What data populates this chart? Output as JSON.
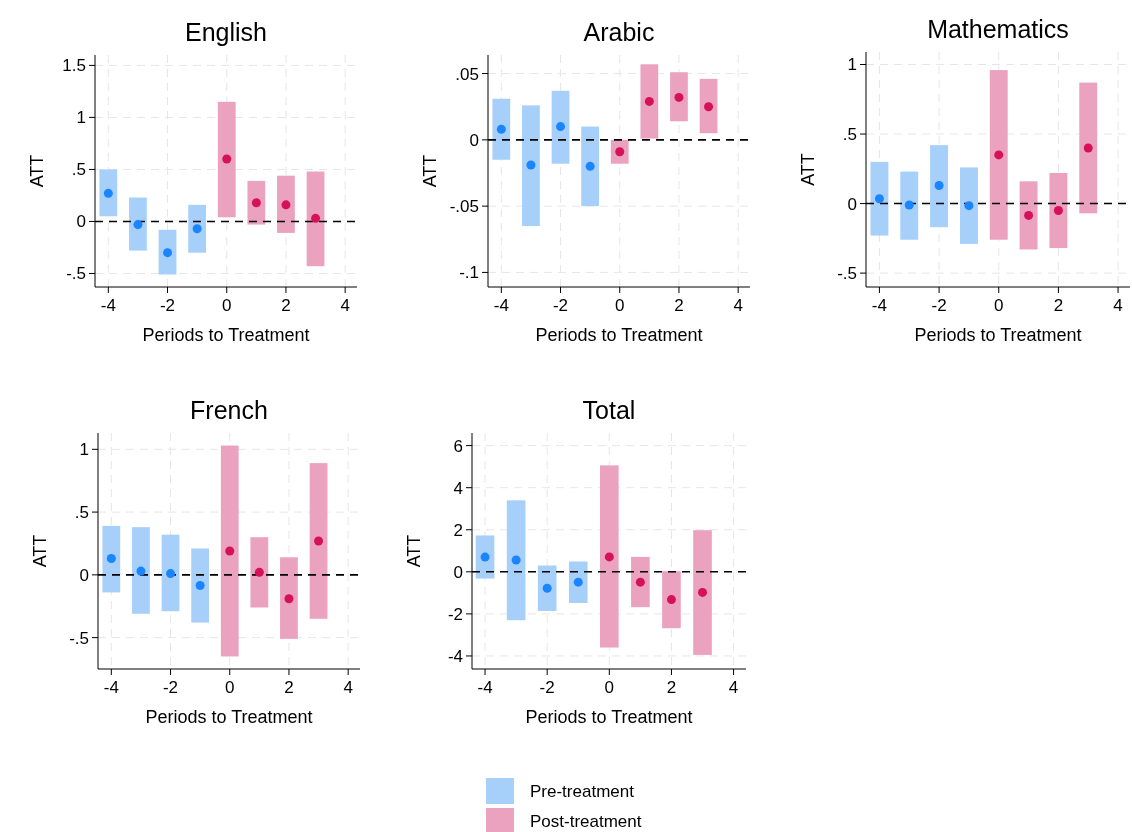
{
  "chart_data": [
    {
      "type": "bar",
      "title": "English",
      "xlabel": "Periods to Treatment",
      "ylabel": "ATT",
      "xlim": [
        -4.45,
        4.4
      ],
      "xticks": [
        -4,
        -2,
        0,
        2,
        4
      ],
      "ylim": [
        -0.63,
        1.6
      ],
      "yticks": [
        {
          "value": -0.5,
          "label": "-.5"
        },
        0,
        {
          "value": 0.5,
          "label": ".5"
        },
        1,
        1.5
      ],
      "grid": true,
      "marker": "circle",
      "legend": false,
      "ref_lines": [
        {
          "axis": "y",
          "value": 0,
          "color": "#000000",
          "line_style": "dashed"
        }
      ],
      "series": [
        {
          "color": "#a6cff9",
          "x": [
            -4,
            -3,
            -2,
            -1
          ],
          "base": [
            0.05,
            -0.28,
            -0.51,
            -0.3
          ],
          "values": [
            0.45,
            0.51,
            0.43,
            0.46
          ]
        },
        {
          "color": "#eba2be",
          "x": [
            0,
            1,
            2,
            3
          ],
          "base": [
            0.04,
            -0.03,
            -0.11,
            -0.43
          ],
          "values": [
            1.11,
            0.42,
            0.55,
            0.91
          ]
        },
        {
          "type": "scatter",
          "color": "#1a85ff",
          "x": [
            -4,
            -3,
            -2,
            -1
          ],
          "values": [
            0.27,
            -0.03,
            -0.3,
            -0.07
          ]
        },
        {
          "type": "scatter",
          "color": "#d41159",
          "x": [
            0,
            1,
            2,
            3
          ],
          "values": [
            0.6,
            0.18,
            0.16,
            0.03
          ]
        }
      ]
    },
    {
      "type": "bar",
      "title": "Arabic",
      "xlabel": "Periods to Treatment",
      "ylabel": "ATT",
      "xlim": [
        -4.45,
        4.4
      ],
      "xticks": [
        -4,
        -2,
        0,
        2,
        4
      ],
      "ylim": [
        -0.111,
        0.064
      ],
      "yticks": [
        {
          "value": -0.1,
          "label": "-.1"
        },
        {
          "value": -0.05,
          "label": "-.05"
        },
        0,
        {
          "value": 0.05,
          "label": ".05"
        }
      ],
      "grid": true,
      "marker": "circle",
      "legend": false,
      "ref_lines": [
        {
          "axis": "y",
          "value": 0,
          "color": "#000000",
          "line_style": "dashed"
        }
      ],
      "series": [
        {
          "color": "#a6cff9",
          "x": [
            -4,
            -3,
            -2,
            -1
          ],
          "base": [
            -0.015,
            -0.065,
            -0.018,
            -0.05
          ],
          "values": [
            0.046,
            0.091,
            0.055,
            0.06
          ]
        },
        {
          "color": "#eba2be",
          "x": [
            0,
            1,
            2,
            3
          ],
          "base": [
            -0.018,
            0.001,
            0.014,
            0.005
          ],
          "values": [
            0.018,
            0.056,
            0.037,
            0.041
          ]
        },
        {
          "type": "scatter",
          "color": "#1a85ff",
          "x": [
            -4,
            -3,
            -2,
            -1
          ],
          "values": [
            0.008,
            -0.019,
            0.01,
            -0.02
          ]
        },
        {
          "type": "scatter",
          "color": "#d41159",
          "x": [
            0,
            1,
            2,
            3
          ],
          "values": [
            -0.009,
            0.029,
            0.032,
            0.025
          ]
        }
      ]
    },
    {
      "type": "bar",
      "title": "Mathematics",
      "xlabel": "Periods to Treatment",
      "ylabel": "ATT",
      "xlim": [
        -4.45,
        4.4
      ],
      "xticks": [
        -4,
        -2,
        0,
        2,
        4
      ],
      "ylim": [
        -0.6,
        1.09
      ],
      "yticks": [
        {
          "value": -0.5,
          "label": "-.5"
        },
        0,
        {
          "value": 0.5,
          "label": ".5"
        },
        1
      ],
      "grid": true,
      "marker": "circle",
      "legend": false,
      "ref_lines": [
        {
          "axis": "y",
          "value": 0,
          "color": "#000000",
          "line_style": "dashed"
        }
      ],
      "series": [
        {
          "color": "#a6cff9",
          "x": [
            -4,
            -3,
            -2,
            -1
          ],
          "base": [
            -0.23,
            -0.26,
            -0.17,
            -0.29
          ],
          "values": [
            0.53,
            0.49,
            0.59,
            0.55
          ]
        },
        {
          "color": "#eba2be",
          "x": [
            0,
            1,
            2,
            3
          ],
          "base": [
            -0.26,
            -0.33,
            -0.32,
            -0.07
          ],
          "values": [
            1.22,
            0.49,
            0.54,
            0.94
          ]
        },
        {
          "type": "scatter",
          "color": "#1a85ff",
          "x": [
            -4,
            -3,
            -2,
            -1
          ],
          "values": [
            0.035,
            -0.01,
            0.13,
            -0.015
          ]
        },
        {
          "type": "scatter",
          "color": "#d41159",
          "x": [
            0,
            1,
            2,
            3
          ],
          "values": [
            0.35,
            -0.085,
            -0.05,
            0.4
          ]
        }
      ]
    },
    {
      "type": "bar",
      "title": "French",
      "xlabel": "Periods to Treatment",
      "ylabel": "ATT",
      "xlim": [
        -4.45,
        4.4
      ],
      "xticks": [
        -4,
        -2,
        0,
        2,
        4
      ],
      "ylim": [
        -0.75,
        1.13
      ],
      "yticks": [
        {
          "value": -0.5,
          "label": "-.5"
        },
        0,
        {
          "value": 0.5,
          "label": ".5"
        },
        1
      ],
      "grid": true,
      "marker": "circle",
      "legend": false,
      "ref_lines": [
        {
          "axis": "y",
          "value": 0,
          "color": "#000000",
          "line_style": "dashed"
        }
      ],
      "series": [
        {
          "color": "#a6cff9",
          "x": [
            -4,
            -3,
            -2,
            -1
          ],
          "base": [
            -0.14,
            -0.31,
            -0.29,
            -0.38
          ],
          "values": [
            0.53,
            0.69,
            0.61,
            0.59
          ]
        },
        {
          "color": "#eba2be",
          "x": [
            0,
            1,
            2,
            3
          ],
          "base": [
            -0.65,
            -0.26,
            -0.51,
            -0.35
          ],
          "values": [
            1.68,
            0.56,
            0.65,
            1.24
          ]
        },
        {
          "type": "scatter",
          "color": "#1a85ff",
          "x": [
            -4,
            -3,
            -2,
            -1
          ],
          "values": [
            0.13,
            0.03,
            0.01,
            -0.085
          ]
        },
        {
          "type": "scatter",
          "color": "#d41159",
          "x": [
            0,
            1,
            2,
            3
          ],
          "values": [
            0.19,
            0.02,
            -0.19,
            0.27
          ]
        }
      ]
    },
    {
      "type": "bar",
      "title": "Total",
      "xlabel": "Periods to Treatment",
      "ylabel": "ATT",
      "xlim": [
        -4.42,
        4.4
      ],
      "xticks": [
        -4,
        -2,
        0,
        2,
        4
      ],
      "ylim": [
        -4.62,
        6.6
      ],
      "yticks": [
        -4,
        -2,
        0,
        2,
        4,
        6
      ],
      "grid": true,
      "marker": "circle",
      "legend": "bottom",
      "ref_lines": [
        {
          "axis": "y",
          "value": 0,
          "color": "#000000",
          "line_style": "dashed"
        }
      ],
      "series": [
        {
          "name": "Pre-treatment",
          "color": "#a6cff9",
          "x": [
            -4,
            -3,
            -2,
            -1
          ],
          "base": [
            -0.32,
            -2.3,
            -1.86,
            -1.48
          ],
          "values": [
            2.05,
            5.7,
            2.16,
            1.97
          ]
        },
        {
          "name": "Post-treatment",
          "color": "#eba2be",
          "x": [
            0,
            1,
            2,
            3
          ],
          "base": [
            -3.6,
            -1.68,
            -2.68,
            -3.95
          ],
          "values": [
            8.66,
            2.39,
            2.71,
            5.93
          ]
        },
        {
          "type": "scatter",
          "color": "#1a85ff",
          "x": [
            -4,
            -3,
            -2,
            -1
          ],
          "values": [
            0.7,
            0.56,
            -0.78,
            -0.49
          ]
        },
        {
          "type": "scatter",
          "color": "#d41159",
          "x": [
            0,
            1,
            2,
            3
          ],
          "values": [
            0.71,
            -0.49,
            -1.32,
            -0.98
          ]
        }
      ]
    }
  ]
}
